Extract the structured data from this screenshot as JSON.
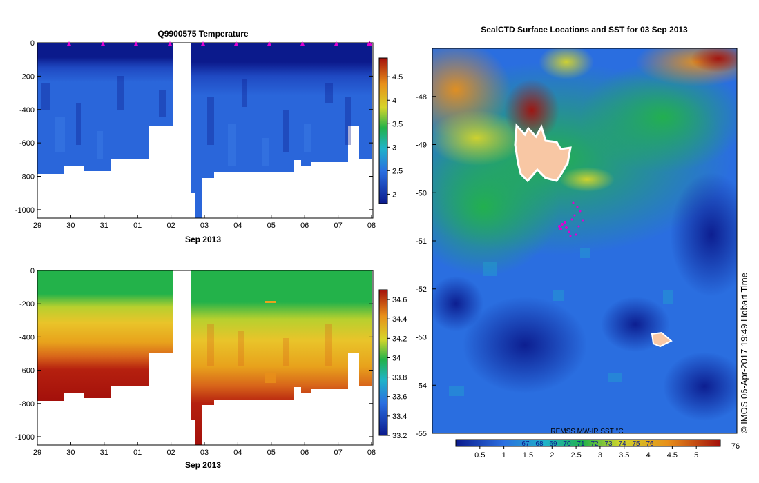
{
  "chart_data": [
    {
      "type": "heatmap",
      "title": "Q9900575  Temperature",
      "xlabel": "Sep 2013",
      "x_ticks": [
        "29",
        "30",
        "31",
        "01",
        "02",
        "03",
        "04",
        "05",
        "06",
        "07",
        "08"
      ],
      "y_ticks": [
        "0",
        "-200",
        "-400",
        "-600",
        "-800",
        "-1000"
      ],
      "ylim": [
        -1050,
        0
      ],
      "colorbar": {
        "min": 1.8,
        "max": 4.9,
        "ticks": [
          "2",
          "2.5",
          "3",
          "3.5",
          "4",
          "4.5"
        ]
      },
      "values_summary": "Cold (about 2 °C) in the upper 200 m, warming to about 2.5–3 °C below 200 m",
      "profile_markers": "magenta triangles along the surface"
    },
    {
      "type": "heatmap",
      "title": "",
      "xlabel": "Sep 2013",
      "x_ticks": [
        "29",
        "30",
        "31",
        "01",
        "02",
        "03",
        "04",
        "05",
        "06",
        "07",
        "08"
      ],
      "y_ticks": [
        "0",
        "-200",
        "-400",
        "-600",
        "-800",
        "-1000"
      ],
      "ylim": [
        -1050,
        0
      ],
      "colorbar": {
        "min": 33.2,
        "max": 34.7,
        "ticks": [
          "33.2",
          "33.4",
          "33.6",
          "33.8",
          "34",
          "34.2",
          "34.4",
          "34.6"
        ]
      },
      "values_summary": "About 33.9 near the surface, increasing with depth to about 34.7 below 700 m"
    },
    {
      "type": "heatmap",
      "title": "SealCTD Surface Locations and SST for 03 Sep 2013",
      "y_ticks": [
        "-48",
        "-49",
        "-50",
        "-51",
        "-52",
        "-53",
        "-54",
        "-55"
      ],
      "ylim": [
        -55,
        -47
      ],
      "colorbar_label": "REMSS MW-IR SST °C",
      "colorbar": {
        "min": 0,
        "max": 5.5,
        "ticks": [
          "0.5",
          "1",
          "1.5",
          "2",
          "2.5",
          "3",
          "3.5",
          "4",
          "4.5",
          "5"
        ]
      },
      "colorbar_overlay_text": "67 · 68 · 69 · 70 · 71 · 72 · 73 · 74 · 75 · 76",
      "credit": "© IMOS 06-Apr-2017 19:49 Hobart Time"
    }
  ],
  "colors": {
    "ocean_cold": "#0b1a8c",
    "ocean_mid": "#2a6ee0",
    "mid_green": "#22b24a",
    "warm": "#e8a21c",
    "hot": "#b5200f",
    "land": "#f8c7a4",
    "markers": "#e000d0"
  }
}
